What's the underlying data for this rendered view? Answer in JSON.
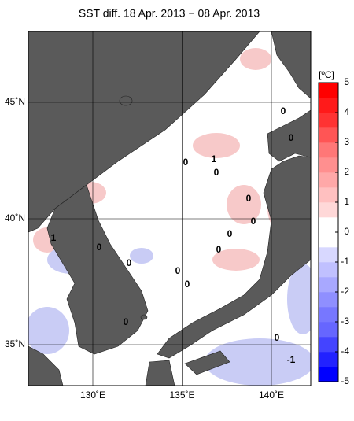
{
  "title": "SST diff. 18 Apr. 2013 − 08 Apr. 2013",
  "colorbar": {
    "unit": "[ºC]",
    "lim": [
      -5,
      5
    ],
    "ticks": [
      5,
      4,
      3,
      2,
      1,
      0,
      -1,
      -2,
      -3,
      -4,
      -5
    ],
    "colors": [
      "#0000ff",
      "#2222ff",
      "#4444ff",
      "#6666ff",
      "#7777ff",
      "#8f8fff",
      "#a8a8ff",
      "#c0c0ff",
      "#d8d8ff",
      "#ffffff",
      "#ffffff",
      "#ffd8d8",
      "#ffc0c0",
      "#ffa8a8",
      "#ff8f8f",
      "#ff7777",
      "#ff5555",
      "#ff3333",
      "#ff1a1a",
      "#ff0000"
    ]
  },
  "lat_ticks": [
    {
      "value": 45,
      "label": "45˚N"
    },
    {
      "value": 40,
      "label": "40˚N"
    },
    {
      "value": 35,
      "label": "35˚N"
    }
  ],
  "lon_ticks": [
    {
      "value": 130,
      "label": "130˚E"
    },
    {
      "value": 135,
      "label": "135˚E"
    },
    {
      "value": 140,
      "label": "140˚E"
    }
  ],
  "contour_labels": [
    "1",
    "0",
    "0",
    "0",
    "0",
    "0",
    "0",
    "1",
    "0",
    "0",
    "0",
    "0",
    "0",
    "0",
    "0",
    "0",
    "-1"
  ]
}
